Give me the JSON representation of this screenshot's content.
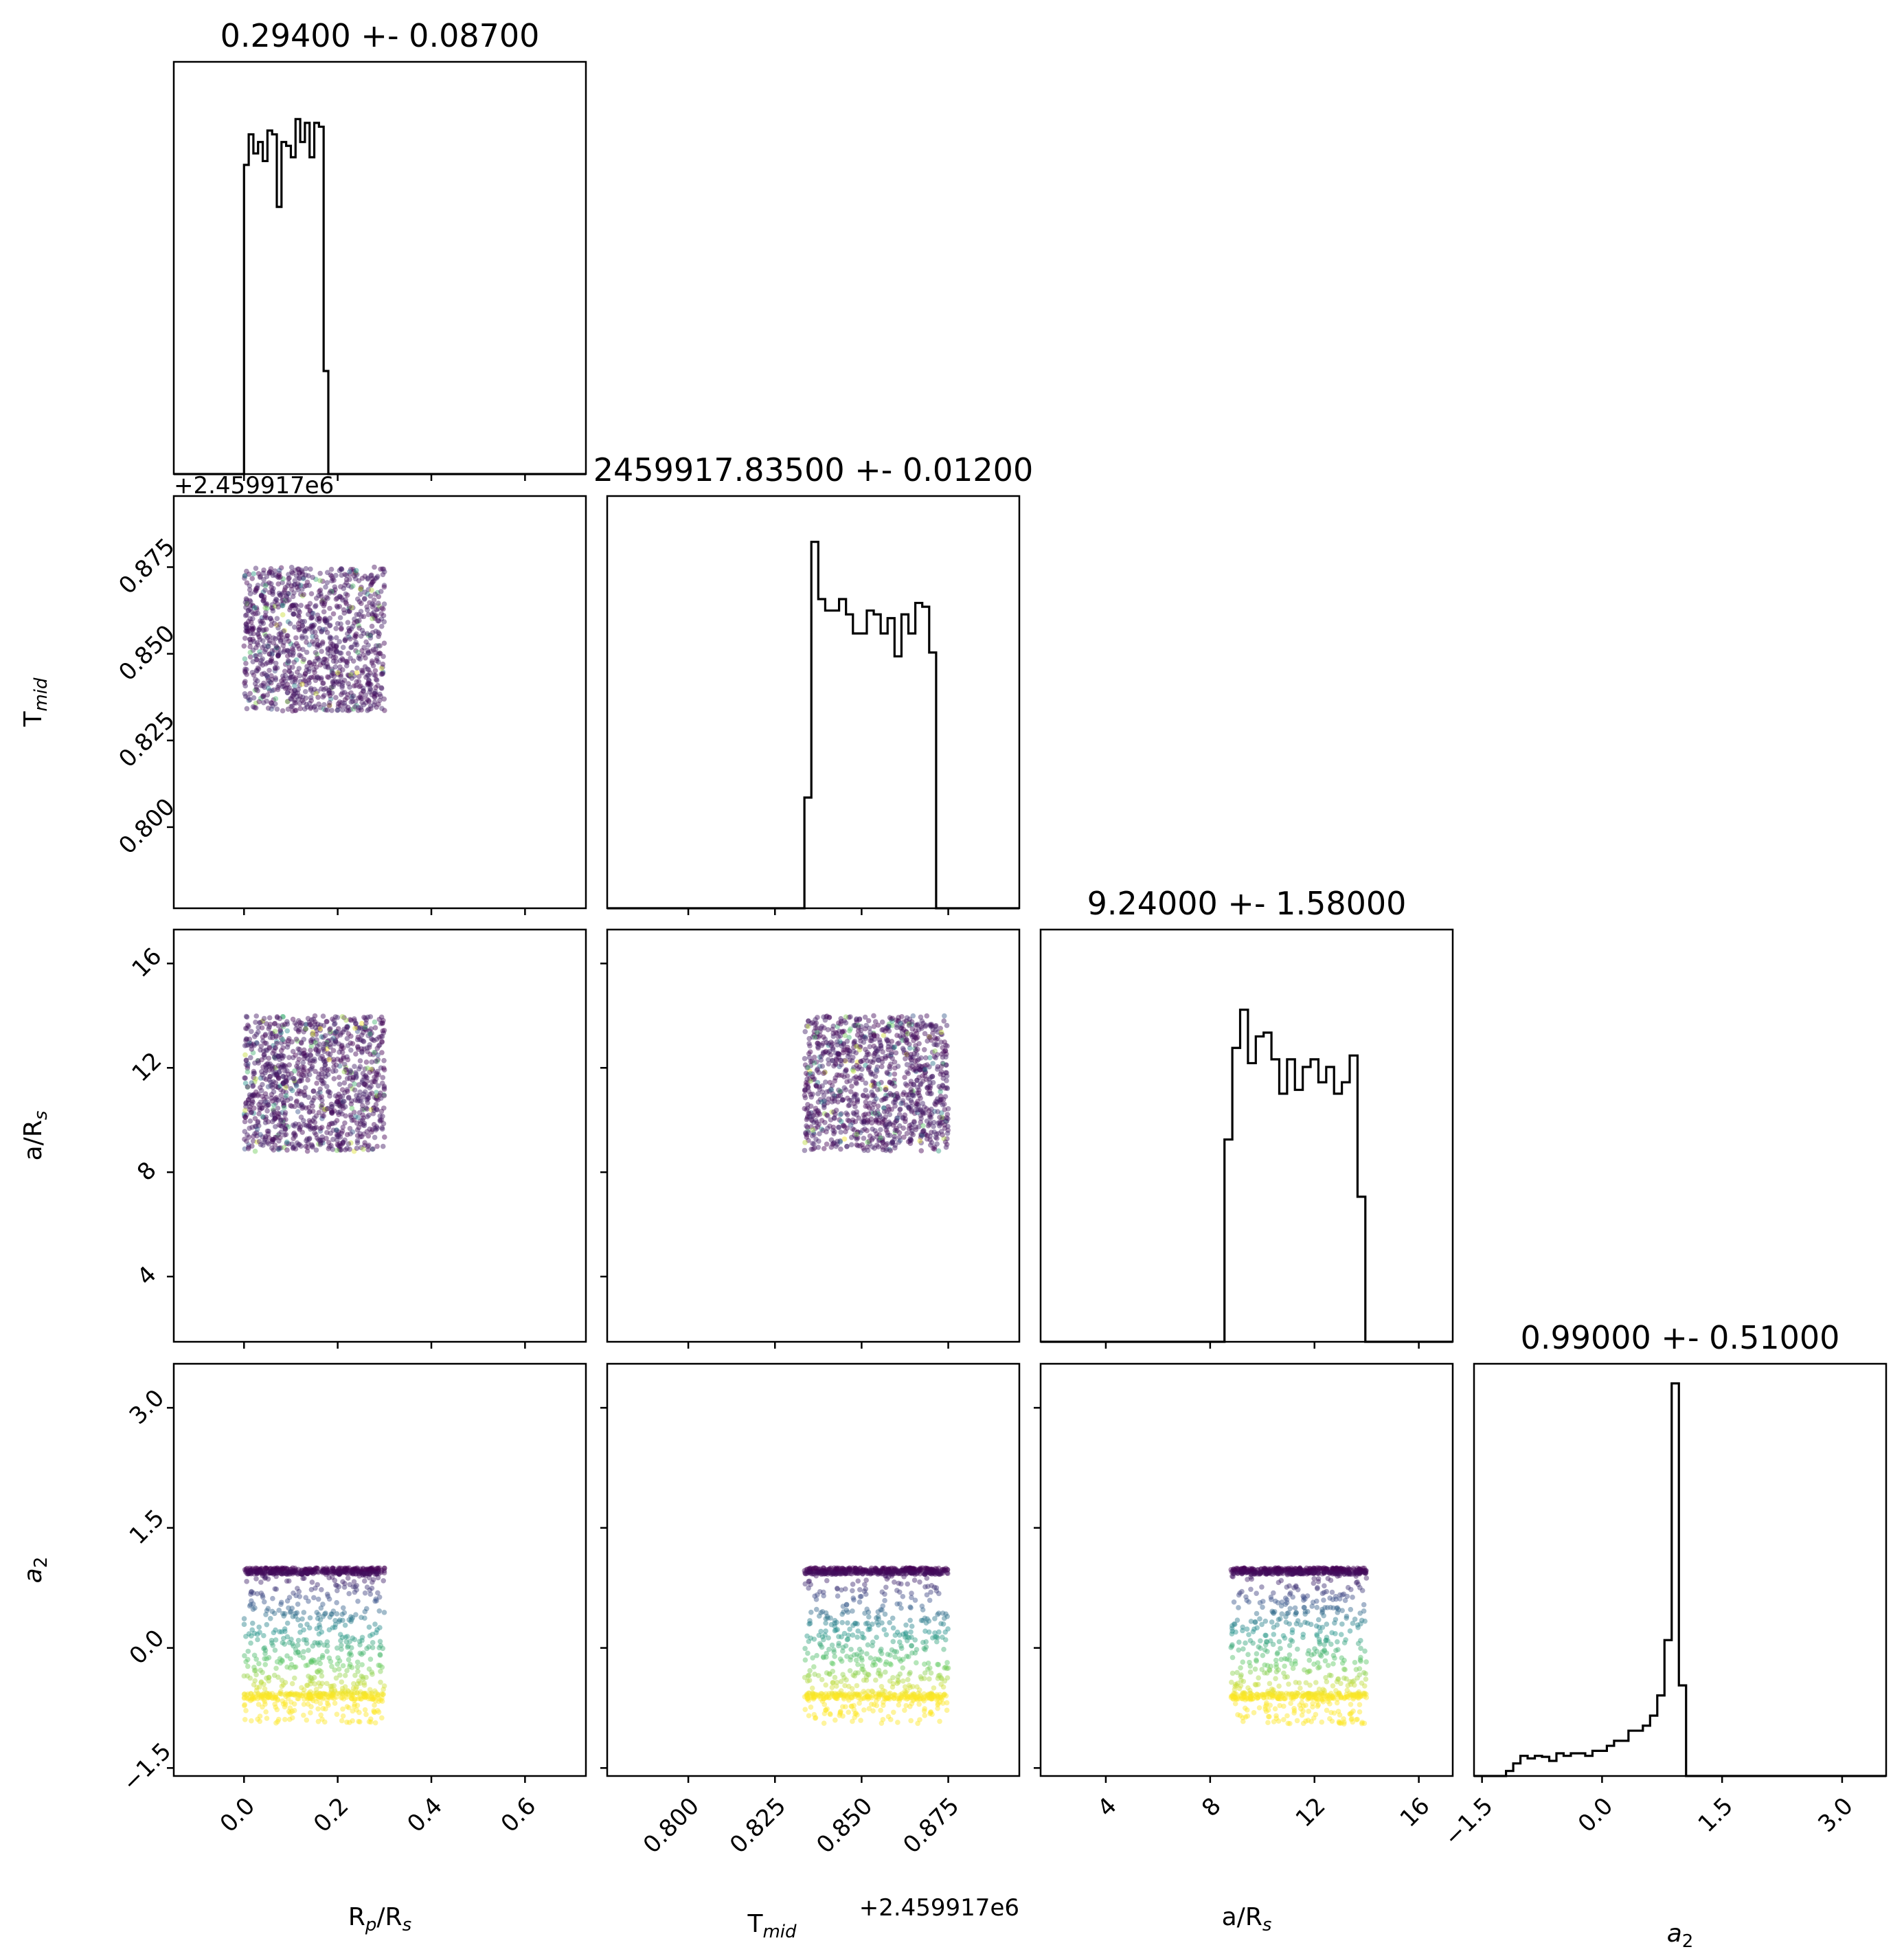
{
  "chart_data": {
    "type": "scatter",
    "layout": "corner",
    "parameters": [
      {
        "key": "rp",
        "label": "R",
        "sub": "p",
        "label_rest": "/R",
        "sub2": "s",
        "title": "0.29400 +- 0.08700",
        "lim": [
          -0.15,
          0.73
        ],
        "ticks": [
          0.0,
          0.2,
          0.4,
          0.6
        ],
        "tick_labels": [
          "0.0",
          "0.2",
          "0.4",
          "0.6"
        ]
      },
      {
        "key": "tmid",
        "label": "T",
        "sub": "mid",
        "label_rest": "",
        "sub2": "",
        "title": "2459917.83500 +- 0.01200",
        "offset_text": "+2.459917e6",
        "lim": [
          0.7766,
          0.8955
        ],
        "ticks": [
          0.8,
          0.825,
          0.85,
          0.875
        ],
        "tick_labels": [
          "0.800",
          "0.825",
          "0.850",
          "0.875"
        ]
      },
      {
        "key": "ars",
        "label": "a/R",
        "sub": "s",
        "label_rest": "",
        "sub2": "",
        "title": "9.24000 +- 1.58000",
        "lim": [
          1.5,
          17.3
        ],
        "ticks": [
          4,
          8,
          12,
          16
        ],
        "tick_labels": [
          "4",
          "8",
          "12",
          "16"
        ]
      },
      {
        "key": "a2",
        "label": "a",
        "sub": "2",
        "label_rest": "",
        "sub2": "",
        "title": "0.99000 +- 0.51000",
        "lim": [
          -1.6,
          3.55
        ],
        "ticks": [
          -1.5,
          0.0,
          1.5,
          3.0
        ],
        "tick_labels": [
          "−1.5",
          "0.0",
          "1.5",
          "3.0"
        ]
      }
    ],
    "histograms": [
      {
        "param": "rp",
        "edges_start": 0.0,
        "bin_width": 0.01,
        "ylim": [
          0,
          1.08
        ],
        "values": [
          0.81,
          0.89,
          0.84,
          0.87,
          0.82,
          0.9,
          0.89,
          0.7,
          0.87,
          0.86,
          0.83,
          0.93,
          0.87,
          0.92,
          0.83,
          0.92,
          0.91,
          0.27,
          0.0
        ]
      },
      {
        "param": "tmid",
        "edges_start": 0.8335,
        "bin_width": 0.002,
        "ylim": [
          0,
          1.08
        ],
        "values": [
          0.29,
          0.96,
          0.81,
          0.78,
          0.78,
          0.81,
          0.77,
          0.72,
          0.72,
          0.78,
          0.77,
          0.72,
          0.76,
          0.66,
          0.77,
          0.72,
          0.8,
          0.79,
          0.67,
          0.0
        ]
      },
      {
        "param": "ars",
        "edges_start": 8.55,
        "bin_width": 0.3,
        "ylim": [
          0,
          1.08
        ],
        "values": [
          0.53,
          0.77,
          0.87,
          0.73,
          0.8,
          0.81,
          0.74,
          0.65,
          0.74,
          0.66,
          0.72,
          0.74,
          0.68,
          0.72,
          0.65,
          0.68,
          0.75,
          0.38,
          0.0
        ]
      },
      {
        "param": "a2",
        "edges_start": -1.2,
        "bin_width": 0.09,
        "values": [
          0.01,
          0.025,
          0.04,
          0.035,
          0.04,
          0.038,
          0.03,
          0.045,
          0.04,
          0.045,
          0.045,
          0.04,
          0.05,
          0.05,
          0.06,
          0.07,
          0.07,
          0.09,
          0.09,
          0.1,
          0.12,
          0.16,
          0.27,
          0.78,
          0.18,
          0.0
        ]
      }
    ],
    "scatter_ranges": {
      "rp": [
        0.0,
        0.3
      ],
      "tmid": [
        0.8335,
        0.875
      ],
      "ars": [
        8.8,
        14.0
      ]
    },
    "a2_distribution": {
      "dense_band_near": 1.0,
      "floor_band_near": -0.6,
      "spread_min": -0.95,
      "max": 1.0
    },
    "colormap": [
      "#440154",
      "#3b528b",
      "#21918c",
      "#5ec962",
      "#fde725"
    ]
  }
}
